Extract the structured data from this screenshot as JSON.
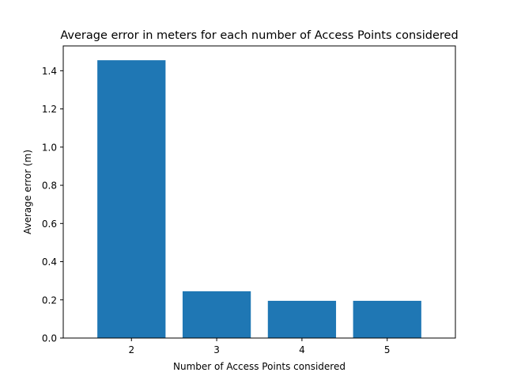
{
  "chart_data": {
    "type": "bar",
    "title": "Average error in meters for each number of Access Points considered",
    "xlabel": "Number of Access Points considered",
    "ylabel": "Average error (m)",
    "categories": [
      "2",
      "3",
      "4",
      "5"
    ],
    "values": [
      1.455,
      0.245,
      0.195,
      0.195
    ],
    "ylim": [
      0,
      1.53
    ],
    "yticks": [
      "0.0",
      "0.2",
      "0.4",
      "0.6",
      "0.8",
      "1.0",
      "1.2",
      "1.4"
    ],
    "grid": false,
    "bar_color": "#1f77b4"
  }
}
